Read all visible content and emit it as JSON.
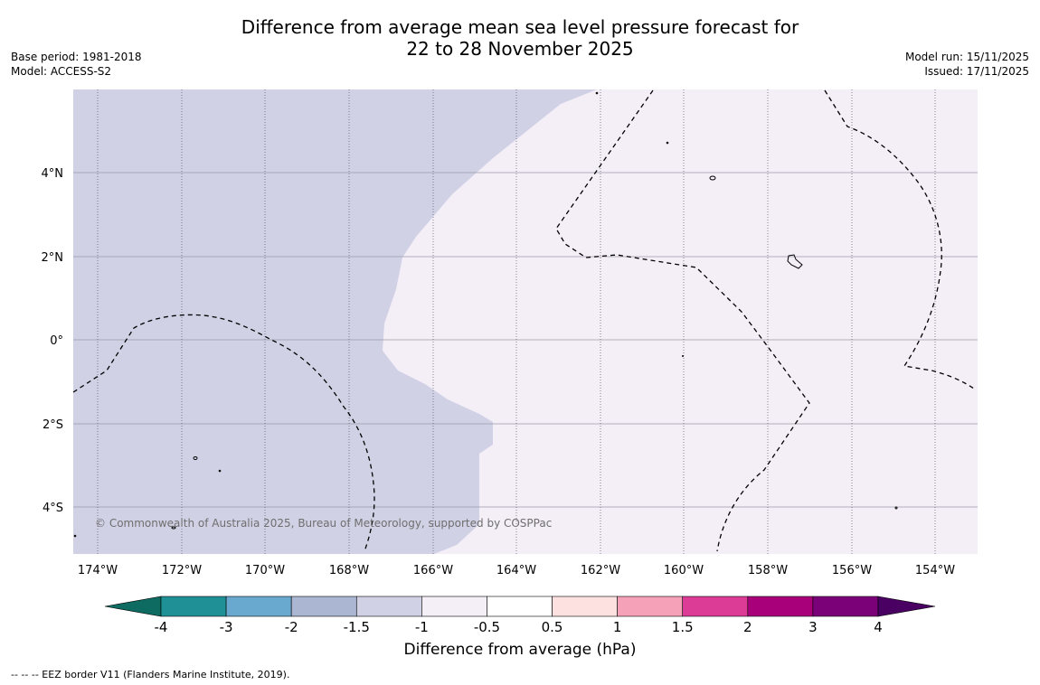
{
  "title_line1": "Difference from average mean sea level pressure forecast for",
  "title_line2": "22 to 28 November 2025",
  "meta": {
    "base_period": "Base period: 1981-2018",
    "model": "Model: ACCESS-S2",
    "model_run": "Model run: 15/11/2025",
    "issued": "Issued: 17/11/2025"
  },
  "map": {
    "lat_labels": [
      "4°N",
      "2°N",
      "0°",
      "2°S",
      "4°S"
    ],
    "lon_labels": [
      "174°W",
      "172°W",
      "170°W",
      "168°W",
      "166°W",
      "164°W",
      "162°W",
      "160°W",
      "158°W",
      "156°W",
      "154°W"
    ],
    "copyright": "© Commonwealth of Australia 2025, Bureau of Meteorology, supported by COSPPac",
    "colors": {
      "region_neg": "#d1d1e6",
      "region_near": "#f4eef7"
    }
  },
  "colorbar": {
    "ticks": [
      "-4",
      "-3",
      "-2",
      "-1.5",
      "-1",
      "-0.5",
      "0.5",
      "1",
      "1.5",
      "2",
      "3",
      "4"
    ],
    "colors": [
      "#0e6b61",
      "#1f9196",
      "#6aa9cf",
      "#abb6d3",
      "#d1d1e6",
      "#f4eef7",
      "#ffffff",
      "#fde0e0",
      "#f5a1b7",
      "#dc3b96",
      "#a8007b",
      "#7a0177",
      "#4a0063"
    ],
    "label": "Difference from average (hPa)"
  },
  "footer": "--  --  -- EEZ border V11 (Flanders Marine Institute, 2019)."
}
